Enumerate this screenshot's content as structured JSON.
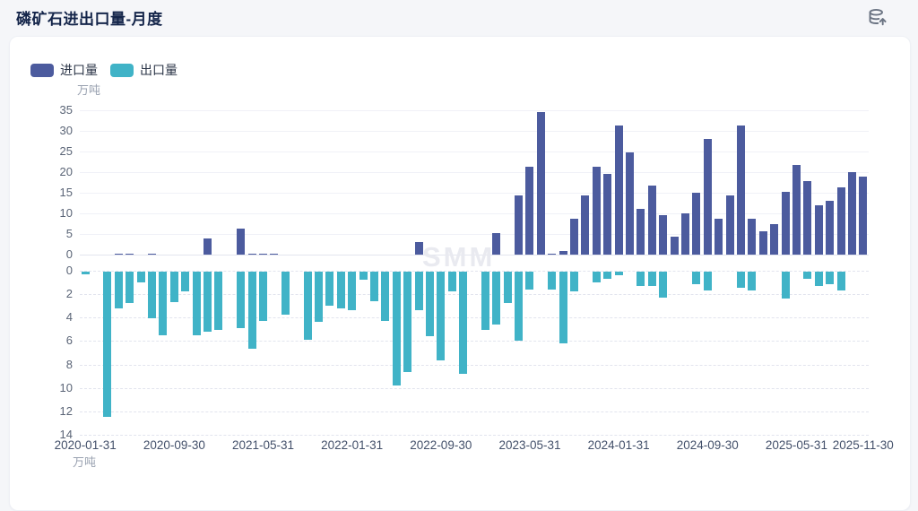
{
  "header": {
    "title": "磷矿石进出口量-月度"
  },
  "toolbar": {
    "export_icon": "database-export"
  },
  "legend": {
    "items": [
      {
        "label": "进口量",
        "color": "#4C5B9E"
      },
      {
        "label": "出口量",
        "color": "#40B3C7"
      }
    ]
  },
  "chart_data": {
    "type": "bar",
    "title": "磷矿石进出口量-月度",
    "unit_label": "万吨",
    "watermark": "SMM",
    "n_points": 71,
    "x_range": [
      "2020-01-31",
      "2025-11-30"
    ],
    "x_tick_labels": [
      "2020-01-31",
      "2020-09-30",
      "2021-05-31",
      "2022-01-31",
      "2022-09-30",
      "2023-05-31",
      "2024-01-31",
      "2024-09-30",
      "2025-05-31",
      "2025-11-30"
    ],
    "x_tick_indices": [
      0,
      8,
      16,
      24,
      32,
      40,
      48,
      56,
      64,
      70
    ],
    "y_axis_top": {
      "ticks": [
        0,
        5,
        10,
        15,
        20,
        25,
        30,
        35
      ],
      "ylim": [
        0,
        35
      ],
      "grid": "solid"
    },
    "y_axis_bottom": {
      "ticks": [
        0,
        2,
        4,
        6,
        8,
        10,
        12,
        14
      ],
      "ylim": [
        0,
        14
      ],
      "grid": "dashed",
      "inverted": true
    },
    "series": [
      {
        "name": "进口量",
        "color": "#4C5B9E",
        "axis": "top",
        "direction": "up",
        "values": [
          0,
          0,
          0,
          0.2,
          0.2,
          0,
          0.2,
          0,
          0,
          0,
          0,
          3.9,
          0,
          0,
          6.3,
          0.3,
          0.2,
          0.2,
          0,
          0,
          0,
          0,
          0,
          0,
          0,
          0,
          0,
          0,
          0,
          0,
          3,
          0,
          0,
          0,
          0,
          0,
          0,
          5.2,
          0,
          14.4,
          21.3,
          34.6,
          0.2,
          0.8,
          8.6,
          14.3,
          21.3,
          19.5,
          31.4,
          24.7,
          11.1,
          16.7,
          9.6,
          4.3,
          10,
          15.1,
          28.1,
          8.8,
          14.3,
          31.3,
          8.6,
          5.7,
          7.3,
          15.3,
          21.7,
          17.9,
          11.9,
          13,
          16.2,
          20,
          19
        ]
      },
      {
        "name": "出口量",
        "color": "#40B3C7",
        "axis": "bottom",
        "direction": "down",
        "values": [
          0.2,
          0,
          12.4,
          3.1,
          2.7,
          0.9,
          4,
          5.4,
          2.6,
          1.7,
          5.4,
          5.1,
          5,
          0,
          4.8,
          6.6,
          4.2,
          0,
          3.7,
          0,
          5.8,
          4.3,
          2.9,
          3.1,
          3.3,
          0.7,
          2.5,
          4.2,
          9.7,
          8.6,
          3.3,
          5.5,
          7.6,
          1.7,
          8.7,
          0,
          5,
          4.5,
          2.7,
          5.9,
          1.5,
          0,
          1.5,
          6.1,
          1.7,
          0,
          0.9,
          0.6,
          0.3,
          0,
          1.2,
          1.2,
          2.2,
          0,
          0,
          1.1,
          1.6,
          0,
          0,
          1.4,
          1.6,
          0,
          0,
          2.3,
          0,
          0.6,
          1.2,
          1.1,
          1.6,
          0,
          0
        ]
      }
    ]
  }
}
